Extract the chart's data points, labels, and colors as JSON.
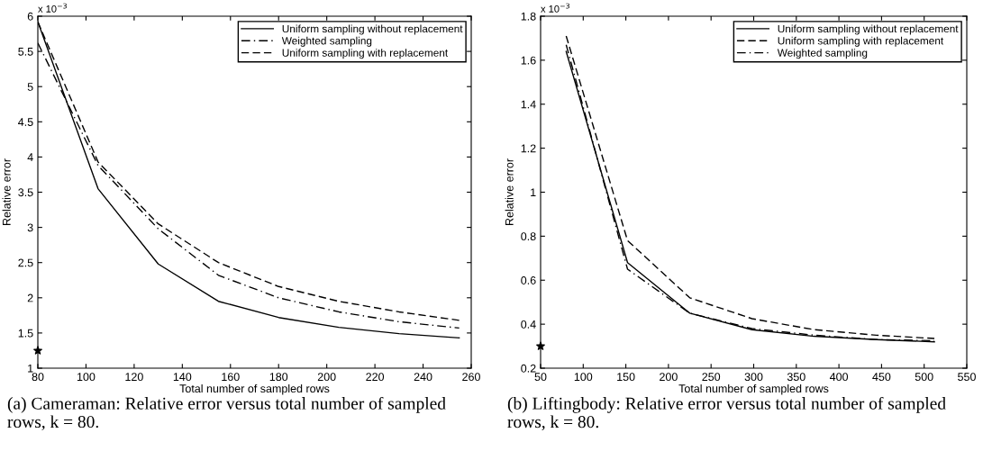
{
  "chart_data": [
    {
      "type": "line",
      "xlabel": "Total number of sampled rows",
      "ylabel": "Relative error",
      "x": [
        80,
        105,
        130,
        155,
        180,
        205,
        230,
        255
      ],
      "xlim": [
        80,
        260
      ],
      "xticks": [
        80,
        100,
        120,
        140,
        160,
        180,
        200,
        220,
        240,
        260
      ],
      "ylim": [
        1,
        6
      ],
      "yticks": [
        1,
        1.5,
        2,
        2.5,
        3,
        3.5,
        4,
        4.5,
        5,
        5.5,
        6
      ],
      "grid": false,
      "legend": "top right",
      "marker": "none",
      "annotations": [
        "x 10$^{−3}$",
        "(a) Cameraman: Relative error versus total number of sampled rows, k = 80."
      ],
      "series": [
        {
          "name": "Uniform sampling without replacement",
          "color": "#000000",
          "line_style": "solid",
          "values": [
            5.92,
            3.55,
            2.48,
            1.95,
            1.72,
            1.58,
            1.49,
            1.43
          ]
        },
        {
          "name": "Weighted sampling",
          "color": "#000000",
          "line_style": "dashdot",
          "values": [
            5.62,
            3.88,
            2.98,
            2.32,
            2.0,
            1.8,
            1.66,
            1.57
          ]
        },
        {
          "name": "Uniform sampling with replacement",
          "color": "#000000",
          "line_style": "dashed",
          "values": [
            5.92,
            3.93,
            3.05,
            2.5,
            2.16,
            1.95,
            1.8,
            1.68
          ]
        },
        {
          "type": "scatter",
          "color": "#000000",
          "marker": "star",
          "x": [
            80
          ],
          "values": [
            1.25
          ]
        }
      ]
    },
    {
      "type": "line",
      "xlabel": "Total number of sampled rows",
      "ylabel": "Relative error",
      "x": [
        80,
        152,
        225,
        298,
        371,
        444,
        512
      ],
      "xlim": [
        50,
        550
      ],
      "xticks": [
        50,
        100,
        150,
        200,
        250,
        300,
        350,
        400,
        450,
        500,
        550
      ],
      "ylim": [
        0.2,
        1.8
      ],
      "yticks": [
        0.2,
        0.4,
        0.6,
        0.8,
        1,
        1.2,
        1.4,
        1.6,
        1.8
      ],
      "grid": false,
      "legend": "top right",
      "marker": "none",
      "annotations": [
        "x 10$^{−3}$",
        "(b) Liftingbody: Relative error versus total number of sampled rows, k = 80."
      ],
      "series": [
        {
          "name": "Uniform sampling without replacement",
          "color": "#000000",
          "line_style": "solid",
          "values": [
            1.64,
            0.68,
            0.45,
            0.375,
            0.345,
            0.33,
            0.32
          ]
        },
        {
          "name": "Uniform sampling with replacement",
          "color": "#000000",
          "line_style": "dashed",
          "values": [
            1.71,
            0.78,
            0.52,
            0.425,
            0.375,
            0.35,
            0.335
          ]
        },
        {
          "name": "Weighted sampling",
          "color": "#000000",
          "line_style": "dashdot",
          "values": [
            1.67,
            0.65,
            0.45,
            0.38,
            0.35,
            0.33,
            0.325
          ]
        },
        {
          "type": "scatter",
          "color": "#000000",
          "marker": "star",
          "x": [
            50
          ],
          "values": [
            0.3
          ]
        }
      ]
    }
  ]
}
